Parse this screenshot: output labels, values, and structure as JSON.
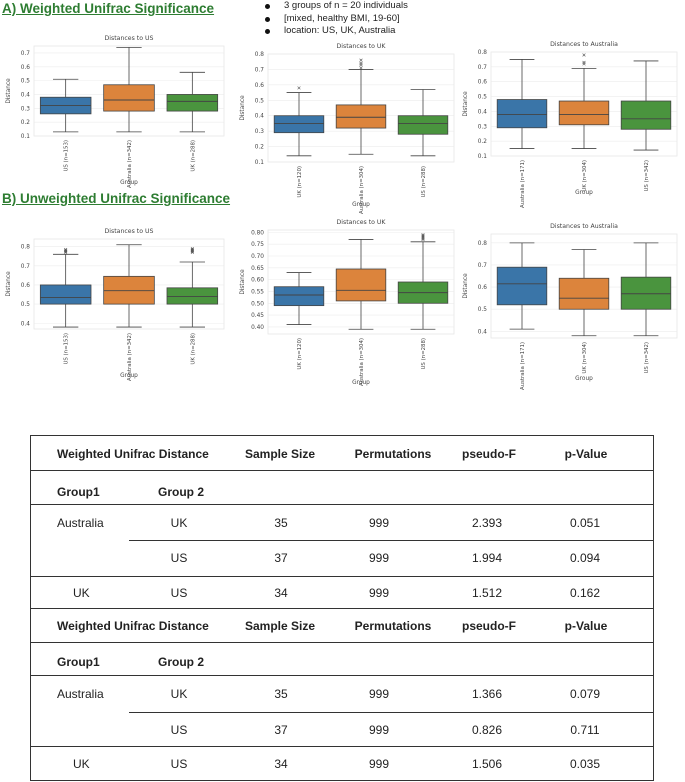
{
  "section_a": "A) Weighted Unifrac Significance",
  "section_b": "B) Unweighted Unifrac Significance",
  "notes": [
    "3 groups of n = 20 individuals",
    "[mixed, healthy BMI, 19-60]",
    "location: US, UK, Australia"
  ],
  "colors": {
    "blue": "#3a75a8",
    "orange": "#dc843c",
    "green": "#4a943e"
  },
  "chart_data": [
    {
      "id": "a1",
      "type": "box",
      "title": "Distances to US",
      "xlabel": "Group",
      "ylabel": "Distance",
      "ylim": [
        0.1,
        0.75
      ],
      "yticks": [
        0.1,
        0.2,
        0.3,
        0.4,
        0.5,
        0.6,
        0.7
      ],
      "categories": [
        "US (n=153)",
        "Australia (n=342)",
        "UK (n=288)"
      ],
      "box_colors": [
        "blue",
        "orange",
        "green"
      ],
      "boxes": [
        {
          "lw": 0.13,
          "q1": 0.26,
          "med": 0.32,
          "q3": 0.38,
          "uw": 0.51,
          "out": []
        },
        {
          "lw": 0.13,
          "q1": 0.28,
          "med": 0.36,
          "q3": 0.47,
          "uw": 0.74,
          "out": []
        },
        {
          "lw": 0.13,
          "q1": 0.28,
          "med": 0.35,
          "q3": 0.4,
          "uw": 0.56,
          "out": []
        }
      ]
    },
    {
      "id": "a2",
      "type": "box",
      "title": "Distances to UK",
      "xlabel": "Group",
      "ylabel": "Distance",
      "ylim": [
        0.1,
        0.8
      ],
      "yticks": [
        0.1,
        0.2,
        0.3,
        0.4,
        0.5,
        0.6,
        0.7,
        0.8
      ],
      "categories": [
        "UK (n=120)",
        "Australia (n=304)",
        "US (n=288)"
      ],
      "box_colors": [
        "blue",
        "orange",
        "green"
      ],
      "boxes": [
        {
          "lw": 0.14,
          "q1": 0.29,
          "med": 0.35,
          "q3": 0.4,
          "uw": 0.55,
          "out": [
            0.58
          ]
        },
        {
          "lw": 0.15,
          "q1": 0.32,
          "med": 0.39,
          "q3": 0.47,
          "uw": 0.7,
          "out": [
            0.71,
            0.73,
            0.74,
            0.76
          ]
        },
        {
          "lw": 0.14,
          "q1": 0.28,
          "med": 0.35,
          "q3": 0.4,
          "uw": 0.57,
          "out": []
        }
      ]
    },
    {
      "id": "a3",
      "type": "box",
      "title": "Distances to Australia",
      "xlabel": "Group",
      "ylabel": "Distance",
      "ylim": [
        0.1,
        0.8
      ],
      "yticks": [
        0.1,
        0.2,
        0.3,
        0.4,
        0.5,
        0.6,
        0.7,
        0.8
      ],
      "categories": [
        "Australia (n=171)",
        "UK (n=304)",
        "US (n=342)"
      ],
      "box_colors": [
        "blue",
        "orange",
        "green"
      ],
      "boxes": [
        {
          "lw": 0.15,
          "q1": 0.29,
          "med": 0.38,
          "q3": 0.48,
          "uw": 0.75,
          "out": []
        },
        {
          "lw": 0.15,
          "q1": 0.31,
          "med": 0.38,
          "q3": 0.47,
          "uw": 0.69,
          "out": [
            0.72,
            0.73,
            0.78
          ]
        },
        {
          "lw": 0.14,
          "q1": 0.28,
          "med": 0.35,
          "q3": 0.47,
          "uw": 0.74,
          "out": []
        }
      ]
    },
    {
      "id": "b1",
      "type": "box",
      "title": "Distances to US",
      "xlabel": "Group",
      "ylabel": "Distance",
      "ylim": [
        0.37,
        0.84
      ],
      "yticks": [
        0.4,
        0.5,
        0.6,
        0.7,
        0.8
      ],
      "categories": [
        "US (n=153)",
        "Australia (n=342)",
        "UK (n=288)"
      ],
      "box_colors": [
        "blue",
        "orange",
        "green"
      ],
      "boxes": [
        {
          "lw": 0.38,
          "q1": 0.5,
          "med": 0.535,
          "q3": 0.6,
          "uw": 0.76,
          "out": [
            0.77,
            0.775,
            0.78,
            0.785
          ]
        },
        {
          "lw": 0.38,
          "q1": 0.5,
          "med": 0.57,
          "q3": 0.645,
          "uw": 0.81,
          "out": []
        },
        {
          "lw": 0.38,
          "q1": 0.5,
          "med": 0.54,
          "q3": 0.585,
          "uw": 0.72,
          "out": [
            0.77,
            0.775,
            0.78,
            0.785,
            0.79
          ]
        }
      ]
    },
    {
      "id": "b2",
      "type": "box",
      "title": "Distances to UK",
      "xlabel": "Group",
      "ylabel": "Distance",
      "ylim": [
        0.37,
        0.81
      ],
      "yticks": [
        0.4,
        0.45,
        0.5,
        0.55,
        0.6,
        0.65,
        0.7,
        0.75,
        0.8
      ],
      "categories": [
        "UK (n=120)",
        "Australia (n=304)",
        "US (n=288)"
      ],
      "box_colors": [
        "blue",
        "orange",
        "green"
      ],
      "boxes": [
        {
          "lw": 0.41,
          "q1": 0.49,
          "med": 0.535,
          "q3": 0.57,
          "uw": 0.63,
          "out": []
        },
        {
          "lw": 0.39,
          "q1": 0.51,
          "med": 0.555,
          "q3": 0.645,
          "uw": 0.77,
          "out": []
        },
        {
          "lw": 0.39,
          "q1": 0.5,
          "med": 0.545,
          "q3": 0.59,
          "uw": 0.76,
          "out": [
            0.77,
            0.775,
            0.78,
            0.785,
            0.79
          ]
        }
      ]
    },
    {
      "id": "b3",
      "type": "box",
      "title": "Distances to Australia",
      "xlabel": "Group",
      "ylabel": "Distance",
      "ylim": [
        0.37,
        0.84
      ],
      "yticks": [
        0.4,
        0.5,
        0.6,
        0.7,
        0.8
      ],
      "categories": [
        "Australia (n=171)",
        "UK (n=304)",
        "US (n=342)"
      ],
      "box_colors": [
        "blue",
        "orange",
        "green"
      ],
      "boxes": [
        {
          "lw": 0.41,
          "q1": 0.52,
          "med": 0.615,
          "q3": 0.69,
          "uw": 0.8,
          "out": []
        },
        {
          "lw": 0.38,
          "q1": 0.5,
          "med": 0.55,
          "q3": 0.64,
          "uw": 0.77,
          "out": []
        },
        {
          "lw": 0.38,
          "q1": 0.5,
          "med": 0.57,
          "q3": 0.645,
          "uw": 0.8,
          "out": []
        }
      ]
    }
  ],
  "table": {
    "headers": [
      "Weighted Unifrac Distance",
      "Sample Size",
      "Permutations",
      "pseudo-F",
      "p-Value"
    ],
    "headers2": [
      "Weighted Unifrac Distance",
      "Sample Size",
      "Permutations",
      "pseudo-F",
      "p-Value"
    ],
    "group1": "Group1",
    "group2": "Group 2",
    "weighted": [
      {
        "g1": "Australia",
        "g2": "UK",
        "n": "35",
        "perm": "999",
        "f": "2.393",
        "p": "0.051"
      },
      {
        "g1": "",
        "g2": "US",
        "n": "37",
        "perm": "999",
        "f": "1.994",
        "p": "0.094"
      },
      {
        "g1": "UK",
        "g2": "US",
        "n": "34",
        "perm": "999",
        "f": "1.512",
        "p": "0.162"
      }
    ],
    "unweighted": [
      {
        "g1": "Australia",
        "g2": "UK",
        "n": "35",
        "perm": "999",
        "f": "1.366",
        "p": "0.079"
      },
      {
        "g1": "",
        "g2": "US",
        "n": "37",
        "perm": "999",
        "f": "0.826",
        "p": "0.711"
      },
      {
        "g1": "UK",
        "g2": "US",
        "n": "34",
        "perm": "999",
        "f": "1.506",
        "p": "0.035"
      }
    ]
  }
}
